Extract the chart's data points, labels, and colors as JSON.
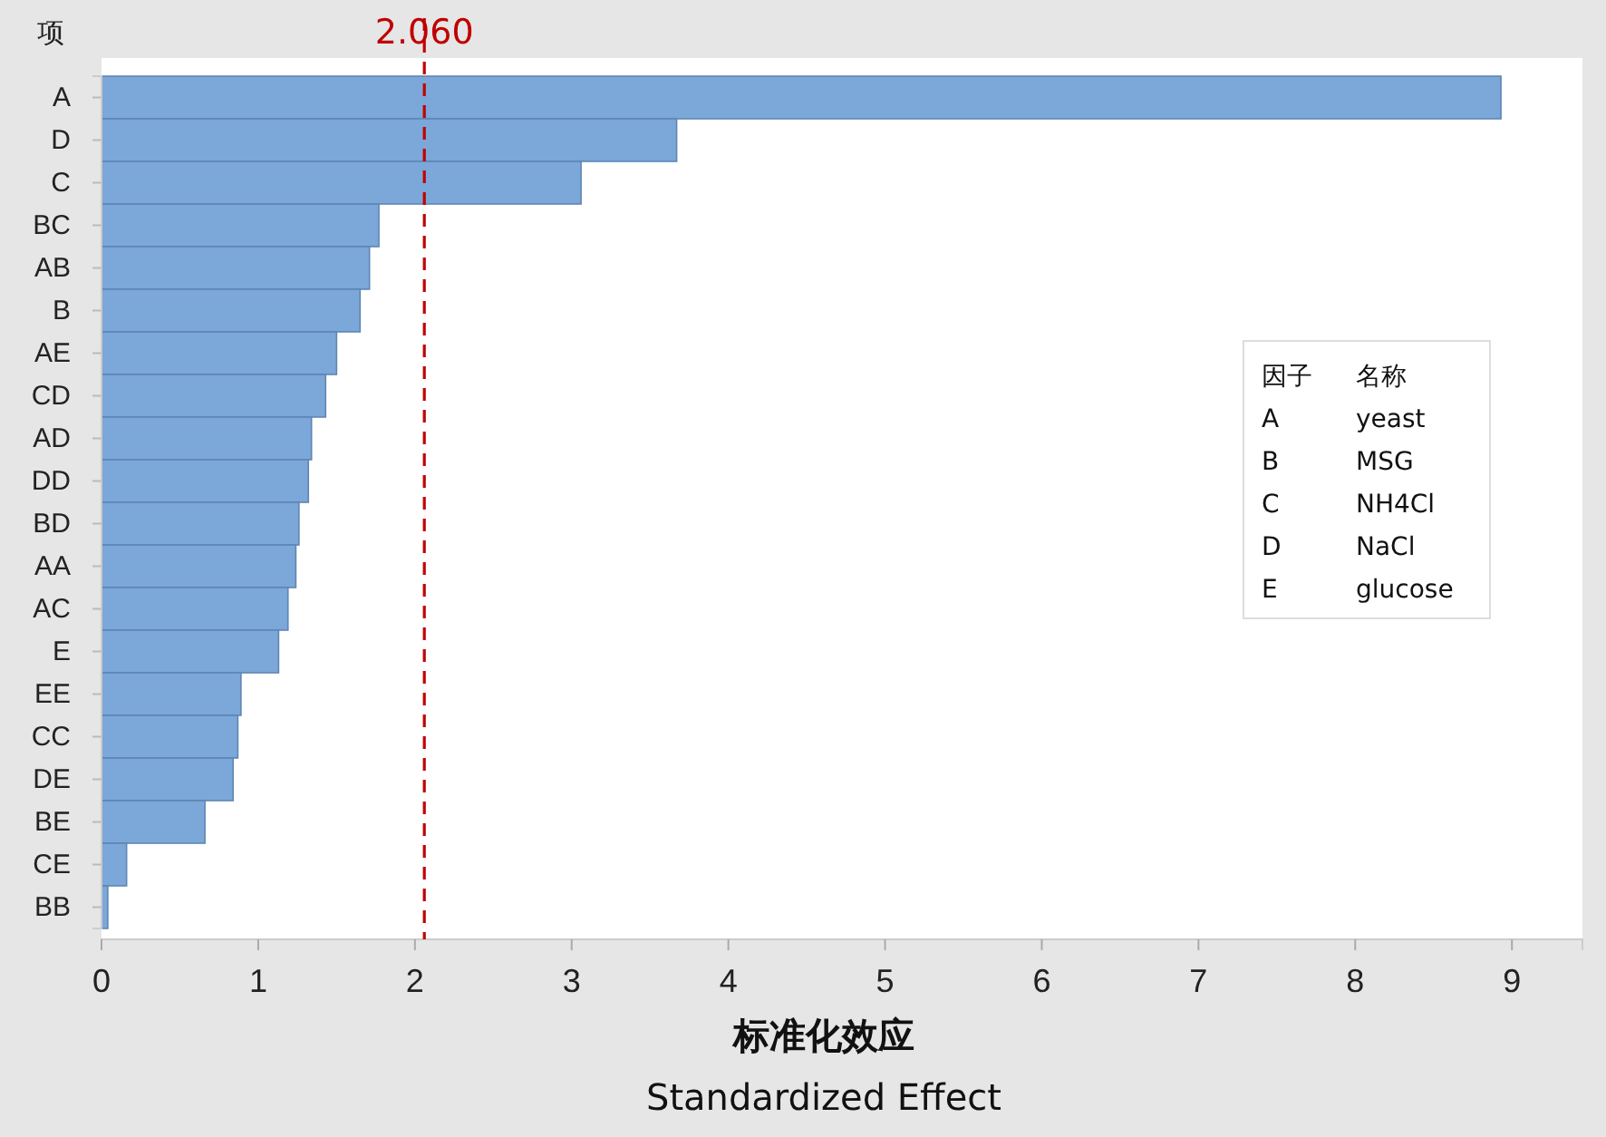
{
  "chart_data": {
    "type": "bar",
    "orientation": "horizontal",
    "categories": [
      "A",
      "D",
      "C",
      "BC",
      "AB",
      "B",
      "AE",
      "CD",
      "AD",
      "DD",
      "BD",
      "AA",
      "AC",
      "E",
      "EE",
      "CC",
      "DE",
      "BE",
      "CE",
      "BB"
    ],
    "values": [
      8.93,
      3.67,
      3.06,
      1.77,
      1.71,
      1.65,
      1.5,
      1.43,
      1.34,
      1.32,
      1.26,
      1.24,
      1.19,
      1.13,
      0.89,
      0.87,
      0.84,
      0.66,
      0.16,
      0.04
    ],
    "color": "#7ba7d9",
    "xlim": [
      0,
      9.45
    ],
    "xticks": [
      0,
      1,
      2,
      3,
      4,
      5,
      6,
      7,
      8,
      9
    ],
    "xlabel": "标准化效应",
    "ylabel": "项",
    "ref_lines": [
      {
        "axis": "x",
        "value": 2.06,
        "label": "2.060",
        "color": "#c00000",
        "line_style": "dashed"
      }
    ],
    "annotations": [
      "Standardized Effect",
      "因子",
      "名称",
      "A",
      "yeast",
      "B",
      "MSG",
      "C",
      "NH4Cl",
      "D",
      "NaCl",
      "E",
      "glucose"
    ],
    "grid": false
  }
}
